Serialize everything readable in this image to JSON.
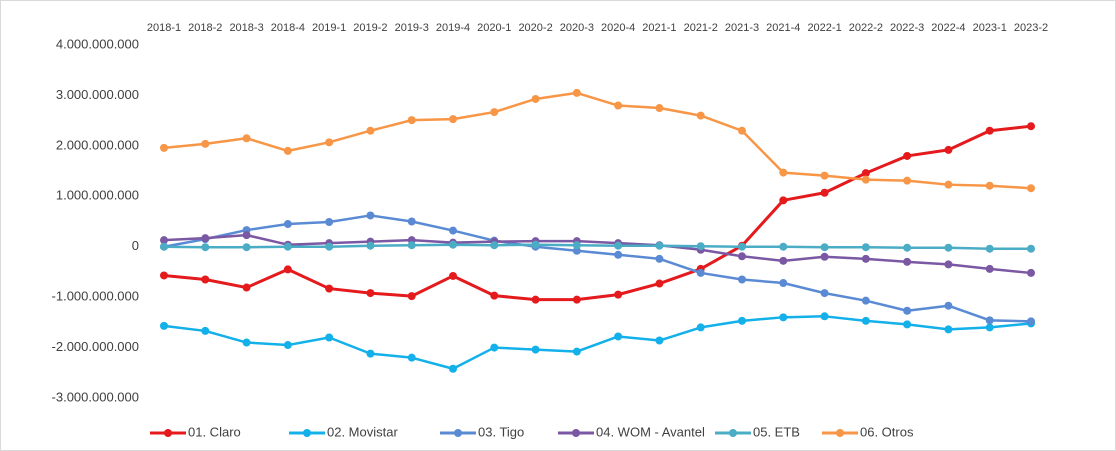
{
  "chart_data": {
    "type": "line",
    "categories": [
      "2018-1",
      "2018-2",
      "2018-3",
      "2018-4",
      "2019-1",
      "2019-2",
      "2019-3",
      "2019-4",
      "2020-1",
      "2020-2",
      "2020-3",
      "2020-4",
      "2021-1",
      "2021-2",
      "2021-3",
      "2021-4",
      "2022-1",
      "2022-2",
      "2022-3",
      "2022-4",
      "2023-1",
      "2023-2"
    ],
    "series": [
      {
        "name": "01. Claro",
        "color": "#e41a1c",
        "values": [
          -570000000,
          -650000000,
          -810000000,
          -450000000,
          -830000000,
          -920000000,
          -980000000,
          -580000000,
          -970000000,
          -1050000000,
          -1050000000,
          -950000000,
          -730000000,
          -440000000,
          20000000,
          920000000,
          1070000000,
          1460000000,
          1800000000,
          1920000000,
          2300000000,
          2390000000
        ]
      },
      {
        "name": "02. Movistar",
        "color": "#13b0ea",
        "values": [
          -1570000000,
          -1670000000,
          -1900000000,
          -1950000000,
          -1800000000,
          -2120000000,
          -2200000000,
          -2420000000,
          -2000000000,
          -2040000000,
          -2080000000,
          -1780000000,
          -1860000000,
          -1600000000,
          -1470000000,
          -1400000000,
          -1380000000,
          -1470000000,
          -1540000000,
          -1640000000,
          -1600000000,
          -1520000000
        ]
      },
      {
        "name": "03. Tigo",
        "color": "#5b8ad4",
        "values": [
          0,
          150000000,
          330000000,
          450000000,
          490000000,
          620000000,
          500000000,
          320000000,
          120000000,
          0,
          -80000000,
          -160000000,
          -240000000,
          -520000000,
          -650000000,
          -720000000,
          -920000000,
          -1070000000,
          -1270000000,
          -1170000000,
          -1460000000,
          -1480000000
        ]
      },
      {
        "name": "04. WOM - Avantel",
        "color": "#7b58a3",
        "values": [
          130000000,
          170000000,
          230000000,
          40000000,
          70000000,
          100000000,
          130000000,
          80000000,
          100000000,
          110000000,
          110000000,
          70000000,
          30000000,
          -60000000,
          -190000000,
          -280000000,
          -200000000,
          -240000000,
          -300000000,
          -350000000,
          -440000000,
          -520000000
        ]
      },
      {
        "name": "05. ETB",
        "color": "#4bacc6",
        "values": [
          0,
          -10000000,
          -10000000,
          0,
          0,
          20000000,
          30000000,
          40000000,
          30000000,
          40000000,
          30000000,
          20000000,
          20000000,
          10000000,
          0,
          0,
          -10000000,
          -10000000,
          -20000000,
          -20000000,
          -40000000,
          -40000000
        ]
      },
      {
        "name": "06. Otros",
        "color": "#f79646",
        "values": [
          1960000000,
          2040000000,
          2150000000,
          1900000000,
          2070000000,
          2300000000,
          2510000000,
          2530000000,
          2670000000,
          2930000000,
          3050000000,
          2800000000,
          2750000000,
          2600000000,
          2300000000,
          1470000000,
          1410000000,
          1330000000,
          1310000000,
          1230000000,
          1210000000,
          1160000000
        ]
      }
    ],
    "ylim": [
      -3000000000,
      4000000000
    ],
    "yticks": [
      {
        "value": 4000000000,
        "label": "4.000.000.000"
      },
      {
        "value": 3000000000,
        "label": "3.000.000.000"
      },
      {
        "value": 2000000000,
        "label": "2.000.000.000"
      },
      {
        "value": 1000000000,
        "label": "1.000.000.000"
      },
      0,
      {
        "value": -1000000000,
        "label": "-1.000.000.000"
      },
      {
        "value": -2000000000,
        "label": "-2.000.000.000"
      },
      {
        "value": -3000000000,
        "label": "-3.000.000.000"
      }
    ],
    "grid": false
  }
}
